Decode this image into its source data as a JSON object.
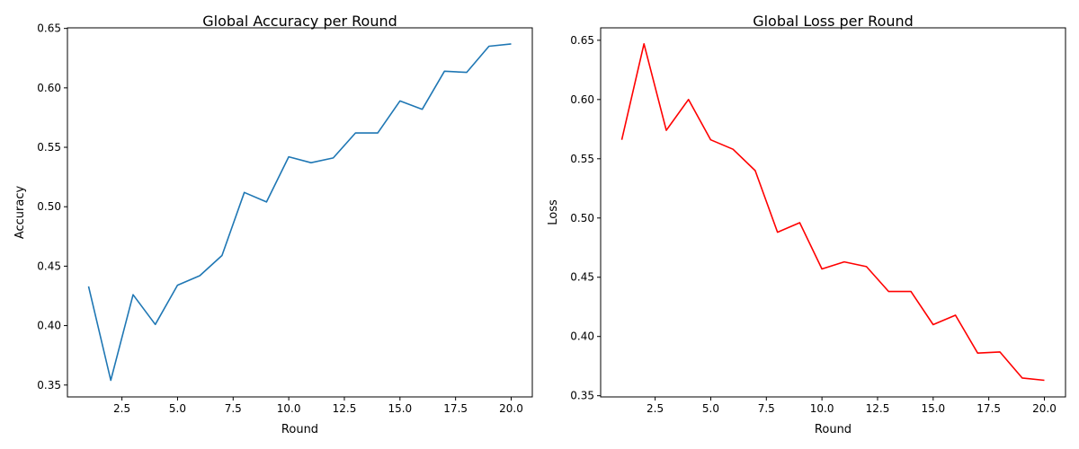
{
  "chart_data": [
    {
      "type": "line",
      "title": "Global Accuracy per Round",
      "xlabel": "Round",
      "ylabel": "Accuracy",
      "xlim": [
        0.05,
        20.95
      ],
      "ylim": [
        0.34,
        0.6505
      ],
      "x_ticks": [
        2.5,
        5.0,
        7.5,
        10.0,
        12.5,
        15.0,
        17.5,
        20.0
      ],
      "x_tick_labels": [
        "2.5",
        "5.0",
        "7.5",
        "10.0",
        "12.5",
        "15.0",
        "17.5",
        "20.0"
      ],
      "y_ticks": [
        0.35,
        0.4,
        0.45,
        0.5,
        0.55,
        0.6,
        0.65
      ],
      "y_tick_labels": [
        "0.35",
        "0.40",
        "0.45",
        "0.50",
        "0.55",
        "0.60",
        "0.65"
      ],
      "grid": false,
      "color": "#1f77b4",
      "x": [
        1,
        2,
        3,
        4,
        5,
        6,
        7,
        8,
        9,
        10,
        11,
        12,
        13,
        14,
        15,
        16,
        17,
        18,
        19,
        20
      ],
      "values": [
        0.433,
        0.354,
        0.426,
        0.401,
        0.434,
        0.442,
        0.459,
        0.512,
        0.504,
        0.542,
        0.537,
        0.541,
        0.562,
        0.562,
        0.589,
        0.582,
        0.614,
        0.613,
        0.635,
        0.637
      ]
    },
    {
      "type": "line",
      "title": "Global Loss per Round",
      "xlabel": "Round",
      "ylabel": "Loss",
      "xlim": [
        0.05,
        20.95
      ],
      "ylim": [
        0.349,
        0.6605
      ],
      "x_ticks": [
        2.5,
        5.0,
        7.5,
        10.0,
        12.5,
        15.0,
        17.5,
        20.0
      ],
      "x_tick_labels": [
        "2.5",
        "5.0",
        "7.5",
        "10.0",
        "12.5",
        "15.0",
        "17.5",
        "20.0"
      ],
      "y_ticks": [
        0.35,
        0.4,
        0.45,
        0.5,
        0.55,
        0.6,
        0.65
      ],
      "y_tick_labels": [
        "0.35",
        "0.40",
        "0.45",
        "0.50",
        "0.55",
        "0.60",
        "0.65"
      ],
      "grid": false,
      "color": "#ff0000",
      "x": [
        1,
        2,
        3,
        4,
        5,
        6,
        7,
        8,
        9,
        10,
        11,
        12,
        13,
        14,
        15,
        16,
        17,
        18,
        19,
        20
      ],
      "values": [
        0.566,
        0.647,
        0.574,
        0.6,
        0.566,
        0.558,
        0.54,
        0.488,
        0.496,
        0.457,
        0.463,
        0.459,
        0.438,
        0.438,
        0.41,
        0.418,
        0.386,
        0.387,
        0.365,
        0.363
      ]
    }
  ]
}
